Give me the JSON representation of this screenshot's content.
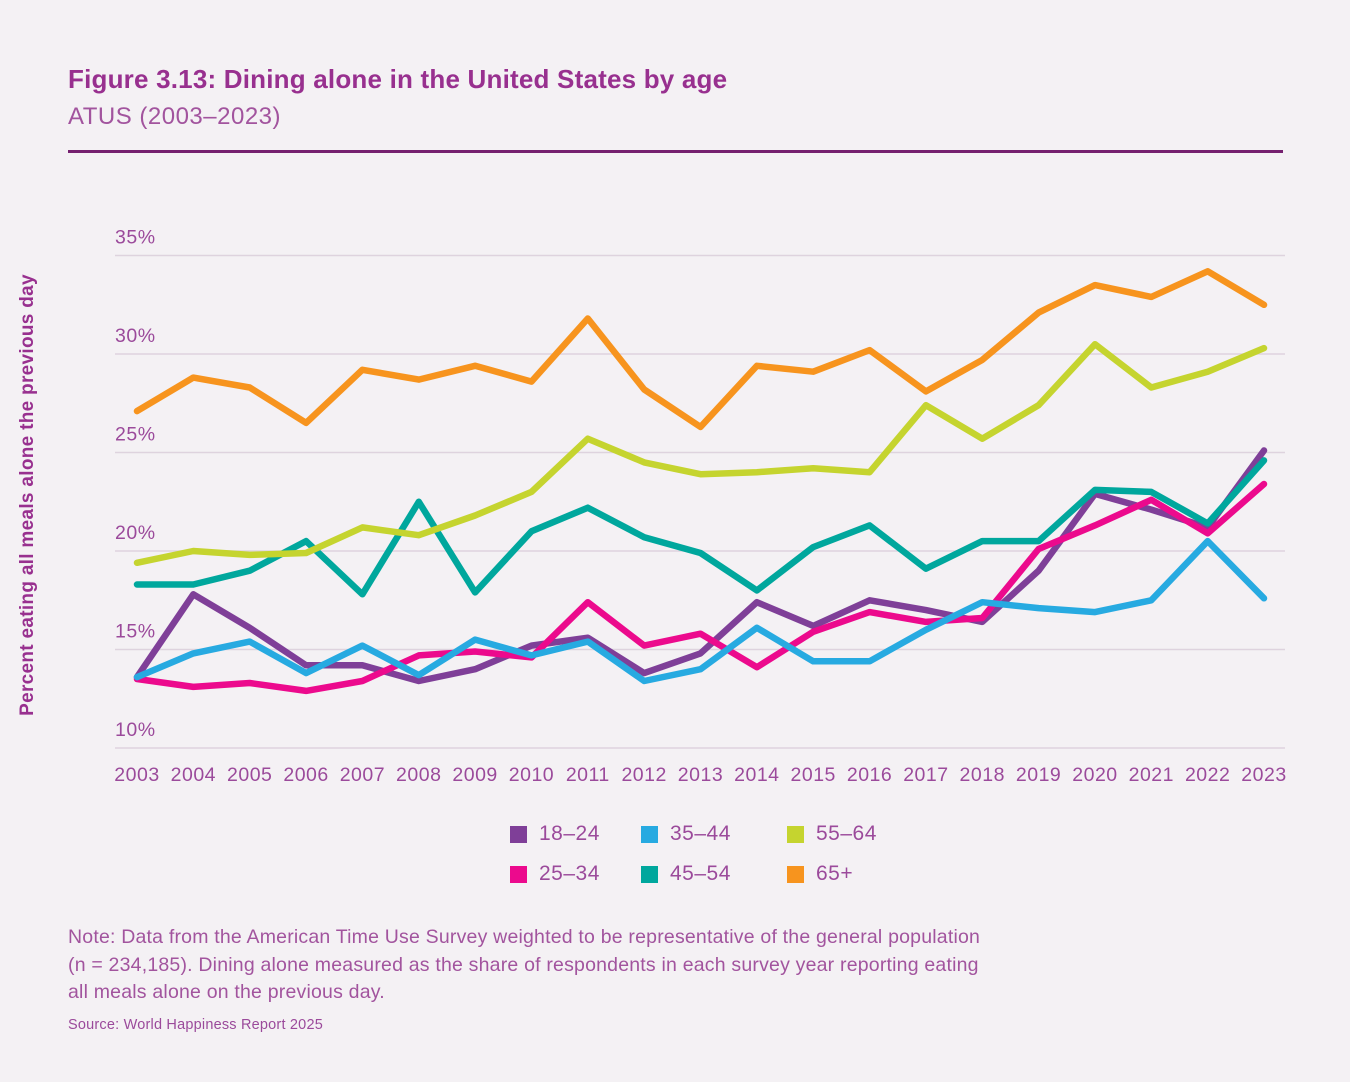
{
  "header": {
    "title": "Figure 3.13: Dining alone in the United States by age",
    "subtitle": "ATUS (2003–2023)"
  },
  "chart_data": {
    "type": "line",
    "title": "Figure 3.13: Dining alone in the United States by age",
    "subtitle": "ATUS (2003–2023)",
    "ylabel": "Percent eating all meals alone the previous day",
    "xlabel": "",
    "x": [
      2003,
      2004,
      2005,
      2006,
      2007,
      2008,
      2009,
      2010,
      2011,
      2012,
      2013,
      2014,
      2015,
      2016,
      2017,
      2018,
      2019,
      2020,
      2021,
      2022,
      2023
    ],
    "y_ticks": [
      10,
      15,
      20,
      25,
      30,
      35
    ],
    "y_tick_labels": [
      "10%",
      "15%",
      "20%",
      "25%",
      "30%",
      "35%"
    ],
    "ylim": [
      10,
      35
    ],
    "grid": "horizontal",
    "legend_position": "bottom",
    "series": [
      {
        "name": "18–24",
        "color": "#7f3f98",
        "values": [
          13.6,
          17.8,
          16.1,
          14.2,
          14.2,
          13.4,
          14.0,
          15.2,
          15.6,
          13.8,
          14.8,
          17.4,
          16.2,
          17.5,
          17.0,
          16.4,
          19.0,
          22.9,
          22.1,
          21.2,
          25.1
        ]
      },
      {
        "name": "25–34",
        "color": "#ec0a8d",
        "values": [
          13.5,
          13.1,
          13.3,
          12.9,
          13.4,
          14.7,
          14.9,
          14.6,
          17.4,
          15.2,
          15.8,
          14.1,
          15.9,
          16.9,
          16.4,
          16.6,
          20.1,
          21.3,
          22.6,
          20.9,
          23.4
        ]
      },
      {
        "name": "35–44",
        "color": "#27aae1",
        "values": [
          13.6,
          14.8,
          15.4,
          13.8,
          15.2,
          13.7,
          15.5,
          14.7,
          15.4,
          13.4,
          14.0,
          16.1,
          14.4,
          14.4,
          16.0,
          17.4,
          17.1,
          16.9,
          17.5,
          20.5,
          17.6
        ]
      },
      {
        "name": "45–54",
        "color": "#00a79d",
        "values": [
          18.3,
          18.3,
          19.0,
          20.5,
          17.8,
          22.5,
          17.9,
          21.0,
          22.2,
          20.7,
          19.9,
          18.0,
          20.2,
          21.3,
          19.1,
          20.5,
          20.5,
          23.1,
          23.0,
          21.4,
          24.6
        ]
      },
      {
        "name": "55–64",
        "color": "#c5d42f",
        "values": [
          19.4,
          20.0,
          19.8,
          19.9,
          21.2,
          20.8,
          21.8,
          23.0,
          25.7,
          24.5,
          23.9,
          24.0,
          24.2,
          24.0,
          27.4,
          25.7,
          27.4,
          30.5,
          28.3,
          29.1,
          30.3
        ]
      },
      {
        "name": "65+",
        "color": "#f7941e",
        "values": [
          27.1,
          28.8,
          28.3,
          26.5,
          29.2,
          28.7,
          29.4,
          28.6,
          31.8,
          28.2,
          26.3,
          29.4,
          29.1,
          30.2,
          28.1,
          29.7,
          32.1,
          33.5,
          32.9,
          34.2,
          32.5
        ]
      }
    ]
  },
  "note": {
    "lines": [
      "Note: Data from the American Time Use Survey weighted to be representative of the general population",
      "(n = 234,185). Dining alone measured as the share of respondents in each survey year reporting eating",
      "all meals alone on the previous day."
    ]
  },
  "source": "Source: World Happiness Report 2025",
  "style": {
    "background": "#f4f1f4",
    "gridline_color": "#ded3de",
    "text_purple": "#9b4a9b",
    "title_purple": "#98308f",
    "rule_color": "#75206f"
  }
}
